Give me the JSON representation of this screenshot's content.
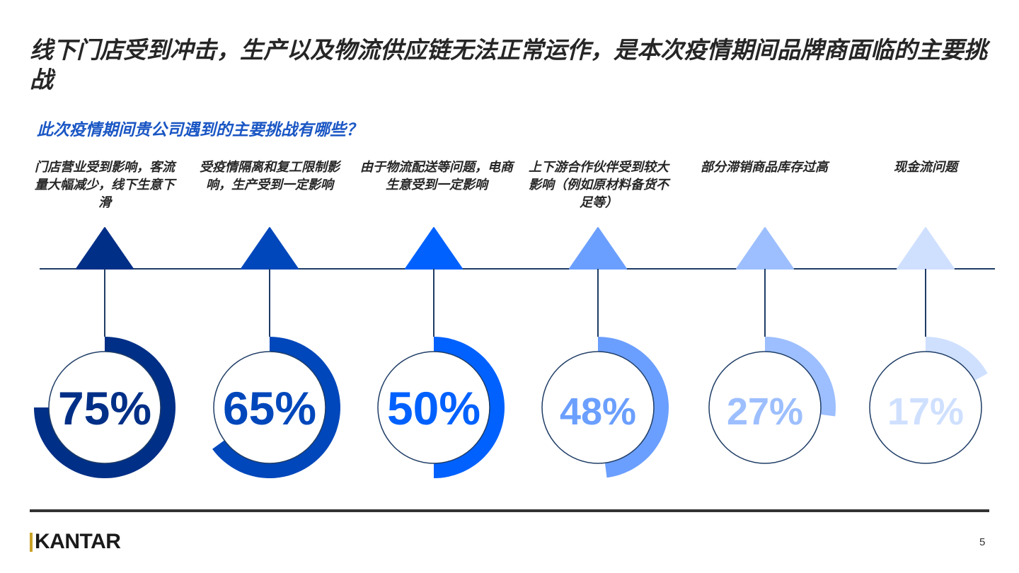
{
  "title": "线下门店受到冲击，生产以及物流供应链无法正常运作，是本次疫情期间品牌商面临的主要挑战",
  "question": "此次疫情期间贵公司遇到的主要挑战有哪些？",
  "chart_data": {
    "type": "bar",
    "title": "",
    "xlabel": "",
    "ylabel": "",
    "ylim": [
      0,
      100
    ],
    "categories": [
      "门店营业受到影响，客流量大幅减少，线下生意下滑",
      "受疫情隔离和复工限制影响，生产受到一定影响",
      "由于物流配送等问题，电商生意受到一定影响",
      "上下游合作伙伴受到较大影响（例如原材料备货不足等）",
      "部分滞销商品库存过高",
      "现金流问题"
    ],
    "values": [
      75,
      65,
      50,
      48,
      27,
      17
    ],
    "value_labels": [
      "75%",
      "65%",
      "50%",
      "48%",
      "27%",
      "17%"
    ],
    "colors": [
      "#002f87",
      "#0047bb",
      "#0061ff",
      "#6b9fff",
      "#9dbfff",
      "#cfe0ff"
    ]
  },
  "footer": {
    "logo": "KANTAR",
    "page_number": "5"
  }
}
